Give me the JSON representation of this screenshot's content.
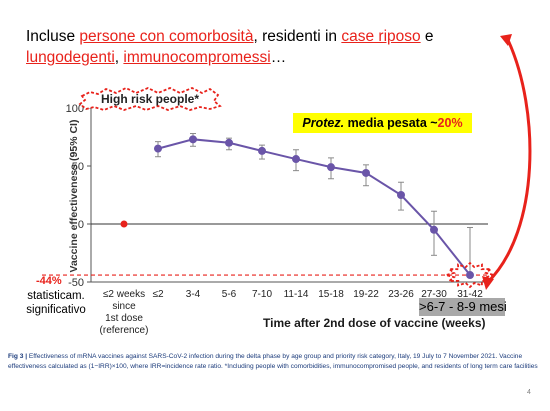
{
  "slide": {
    "headline_parts": [
      {
        "text": "Incluse ",
        "red": false
      },
      {
        "text": "persone con comorbosità",
        "red": true
      },
      {
        "text": ", residenti in ",
        "red": false
      },
      {
        "text": "case riposo",
        "red": true
      },
      {
        "text": " e ",
        "red": false
      },
      {
        "text": "lungodegenti",
        "red": true
      },
      {
        "text": ", ",
        "red": false
      },
      {
        "text": "immunocompromessi",
        "red": true
      },
      {
        "text": "…",
        "red": false
      }
    ],
    "months_box": ">6-7 - 8-9 mesi",
    "left_note": "statisticam. significativo",
    "page_number": "4",
    "caption_fig": "Fig 3 |",
    "caption_text": " Effectiveness of mRNA vaccines against SARS-CoV-2 infection during the delta phase by age group and priority risk category, Italy, 19 July to 7 November 2021. Vaccine effectiveness calculated as (1−IRR)×100, where IRR=incidence rate ratio. *Including people with comorbidities, immunocompromised people, and residents of long term care facilities"
  },
  "chart_data": {
    "type": "line",
    "title": "High risk people*",
    "xlabel": "Time after 2nd dose of vaccine (weeks)",
    "ylabel": "Vaccine effectiveness (95% CI)",
    "ylim": [
      -50,
      100
    ],
    "yticks": [
      "-50",
      "0",
      "50",
      "100"
    ],
    "categories": [
      "≤2 weeks since 1st dose (reference)",
      "≤2",
      "3-4",
      "5-6",
      "7-10",
      "11-14",
      "15-18",
      "19-22",
      "23-26",
      "27-30",
      "31-42"
    ],
    "category_tick_lines": [
      [
        "≤2 weeks",
        "since",
        "1st dose",
        "(reference)"
      ],
      [
        "≤2"
      ],
      [
        "3-4"
      ],
      [
        "5-6"
      ],
      [
        "7-10"
      ],
      [
        "11-14"
      ],
      [
        "15-18"
      ],
      [
        "19-22"
      ],
      [
        "23-26"
      ],
      [
        "27-30"
      ],
      [
        "31-42"
      ]
    ],
    "reference": {
      "category": "≤2 weeks since 1st dose (reference)",
      "value": 0,
      "color": "#e8221b"
    },
    "series": [
      {
        "values": [
          null,
          65,
          73,
          70,
          63,
          56,
          49,
          44,
          25,
          -5,
          -44
        ],
        "ci_low": [
          null,
          58,
          67,
          64,
          56,
          46,
          39,
          33,
          12,
          -27,
          -45
        ],
        "ci_high": [
          null,
          71,
          78,
          74,
          68,
          64,
          57,
          51,
          36,
          11,
          -3
        ]
      }
    ],
    "annotations": {
      "highlight_value": "-44%",
      "protection_prefix": "Protez.",
      "protection_middle": " media pesata ~",
      "protection_value": "20%"
    },
    "colors": {
      "series": "#6a55a8",
      "ci": "#8a8a8a",
      "highlight": "#e8221b",
      "callout_bg": "#ffff00"
    },
    "grid": false
  }
}
